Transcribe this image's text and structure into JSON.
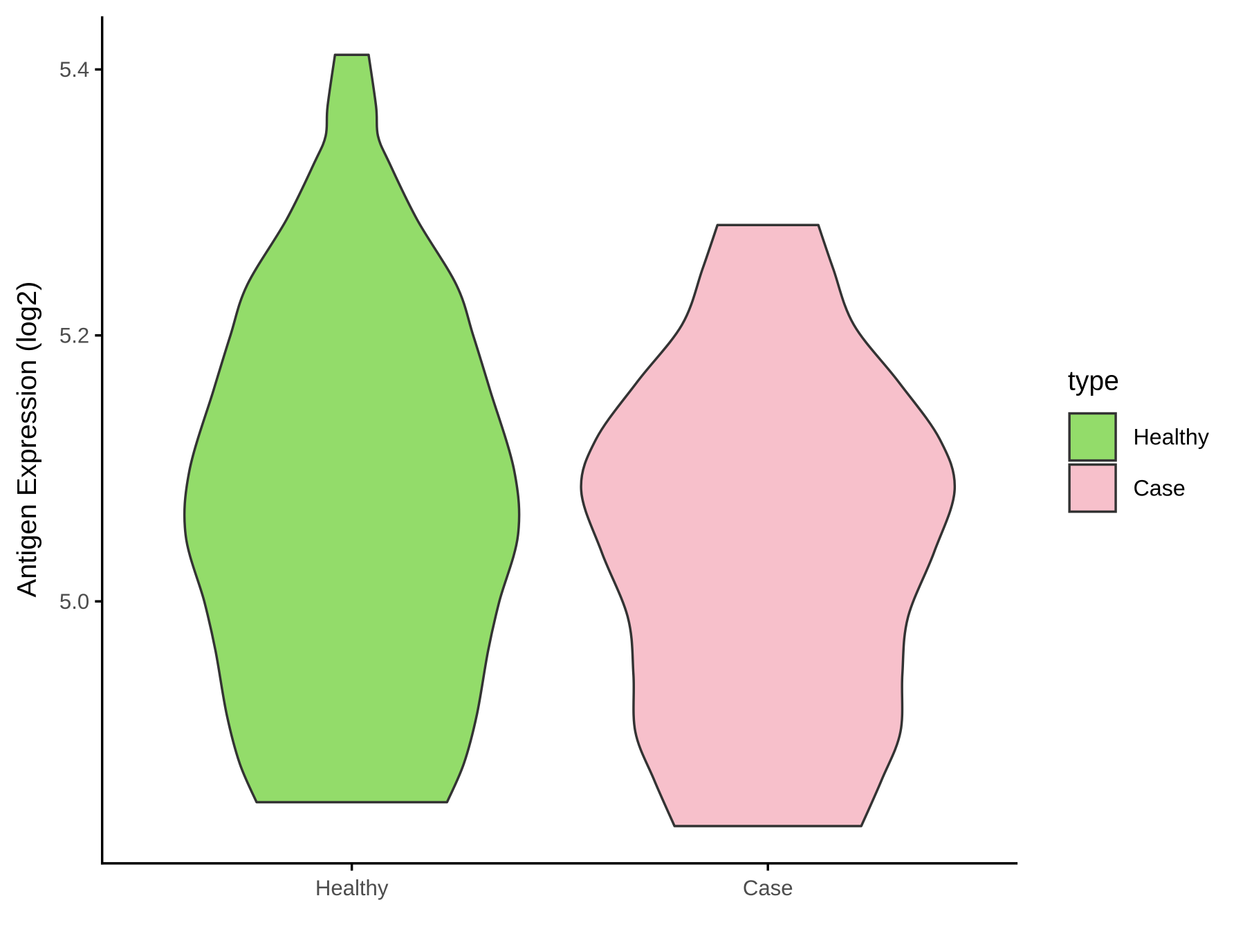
{
  "chart_data": {
    "type": "violin",
    "y_label": "Antigen Expression (log2)",
    "legend_title": "type",
    "categories": [
      "Healthy",
      "Case"
    ],
    "series": [
      {
        "name": "Healthy",
        "color": "#93DC6A",
        "y": [
          5.411,
          5.372,
          5.35,
          5.33,
          5.287,
          5.238,
          5.2,
          5.159,
          5.098,
          5.05,
          5.0,
          4.963,
          4.915,
          4.878,
          4.849
        ],
        "widths": [
          0.09,
          0.13,
          0.14,
          0.2,
          0.35,
          0.56,
          0.65,
          0.74,
          0.87,
          0.89,
          0.79,
          0.73,
          0.67,
          0.6,
          0.51
        ]
      },
      {
        "name": "Case",
        "color": "#F7C0CB",
        "y": [
          5.283,
          5.25,
          5.208,
          5.165,
          5.122,
          5.084,
          5.037,
          4.988,
          4.945,
          4.902,
          4.866,
          4.831
        ],
        "widths": [
          0.27,
          0.35,
          0.46,
          0.7,
          0.92,
          1.0,
          0.89,
          0.75,
          0.72,
          0.71,
          0.61,
          0.5
        ]
      }
    ],
    "ylim": [
      4.803,
      5.44
    ],
    "yticks": [
      {
        "value": 5.0,
        "label": "5.0"
      },
      {
        "value": 5.2,
        "label": "5.2"
      },
      {
        "value": 5.4,
        "label": "5.4"
      }
    ],
    "legend_position": "right"
  }
}
